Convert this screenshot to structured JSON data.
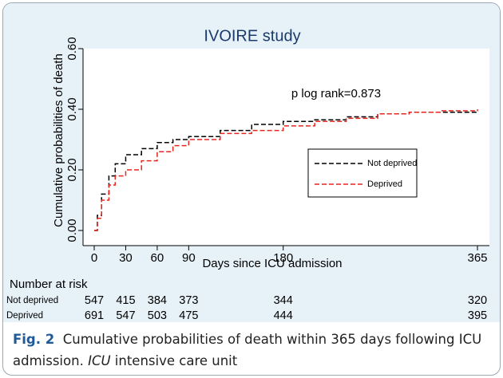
{
  "chart_data": {
    "type": "line",
    "title": "IVOIRE study",
    "annotation": "p log rank=0.873",
    "xlabel": "Days since ICU admission",
    "ylabel": "Cumulative probabilities of death",
    "x": [
      0,
      3,
      7,
      14,
      20,
      30,
      45,
      60,
      75,
      90,
      120,
      150,
      180,
      210,
      240,
      270,
      300,
      330,
      365
    ],
    "series": [
      {
        "name": "Not deprived",
        "color": "#000000",
        "values": [
          0,
          0.05,
          0.12,
          0.18,
          0.22,
          0.25,
          0.27,
          0.29,
          0.3,
          0.31,
          0.33,
          0.35,
          0.36,
          0.365,
          0.375,
          0.385,
          0.39,
          0.39,
          0.395
        ]
      },
      {
        "name": "Deprived",
        "color": "#e8251f",
        "values": [
          0,
          0.04,
          0.1,
          0.15,
          0.18,
          0.2,
          0.23,
          0.26,
          0.28,
          0.3,
          0.32,
          0.33,
          0.345,
          0.36,
          0.37,
          0.385,
          0.39,
          0.395,
          0.4
        ]
      }
    ],
    "xlim": [
      0,
      365
    ],
    "xticks": [
      0,
      30,
      60,
      90,
      180,
      365
    ],
    "ylim": [
      0,
      0.6
    ],
    "yticks": [
      {
        "value": 0,
        "label": "0.00"
      },
      {
        "value": 0.2,
        "label": "0.20"
      },
      {
        "value": 0.4,
        "label": "0.40"
      },
      {
        "value": 0.6,
        "label": "0.60"
      }
    ],
    "legend": "center-right",
    "risk_table": {
      "title": "Number at risk",
      "rows": [
        {
          "label": "Not deprived",
          "values": [
            547,
            415,
            384,
            373,
            344,
            320
          ]
        },
        {
          "label": "Deprived",
          "values": [
            691,
            547,
            503,
            475,
            444,
            395
          ]
        }
      ]
    }
  },
  "caption": {
    "label": "Fig. 2",
    "text": "Cumulative probabilities of death within 365 days following ICU admission.",
    "abbr": "ICU",
    "abbr_def": "intensive care unit"
  }
}
